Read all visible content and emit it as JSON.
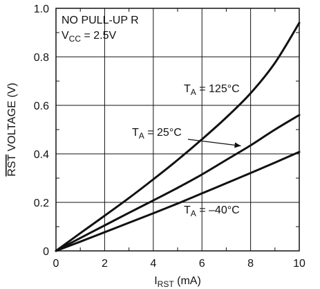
{
  "chart_data": {
    "type": "line",
    "xlim": [
      0,
      10
    ],
    "ylim": [
      0,
      1.0
    ],
    "grid": true,
    "x_ticks": [
      "0",
      "2",
      "4",
      "6",
      "8",
      "10"
    ],
    "y_ticks": [
      "0",
      "0.2",
      "0.4",
      "0.6",
      "0.8",
      "1.0"
    ],
    "xlabel": {
      "main": "I",
      "sub": "RST",
      "suffix": " (mA)"
    },
    "ylabel": {
      "overlined": "RST",
      "suffix": " VOLTAGE (V)"
    },
    "annotation": {
      "line1": "NO PULL-UP R",
      "line2_main": "V",
      "line2_sub": "CC",
      "line2_suffix": " = 2.5V"
    },
    "series": [
      {
        "label_main": "T",
        "label_sub": "A",
        "label_suffix": " = 125°C",
        "x": [
          0,
          1,
          2,
          3,
          4,
          5,
          6,
          7,
          8,
          9,
          10
        ],
        "y": [
          0,
          0.073,
          0.145,
          0.218,
          0.295,
          0.375,
          0.46,
          0.55,
          0.65,
          0.775,
          0.94
        ]
      },
      {
        "label_main": "T",
        "label_sub": "A",
        "label_suffix": " = 25°C",
        "x": [
          0,
          1,
          2,
          3,
          4,
          5,
          6,
          7,
          8,
          9,
          10
        ],
        "y": [
          0,
          0.053,
          0.105,
          0.157,
          0.208,
          0.26,
          0.315,
          0.375,
          0.435,
          0.5,
          0.56
        ]
      },
      {
        "label_main": "T",
        "label_sub": "A",
        "label_suffix": " = –40°C",
        "x": [
          0,
          1,
          2,
          3,
          4,
          5,
          6,
          7,
          8,
          9,
          10
        ],
        "y": [
          0,
          0.038,
          0.077,
          0.116,
          0.155,
          0.195,
          0.237,
          0.279,
          0.321,
          0.364,
          0.408
        ]
      }
    ]
  },
  "colors": {
    "line": "#111111",
    "grid": "#111111",
    "text": "#111111",
    "background": "#ffffff"
  }
}
